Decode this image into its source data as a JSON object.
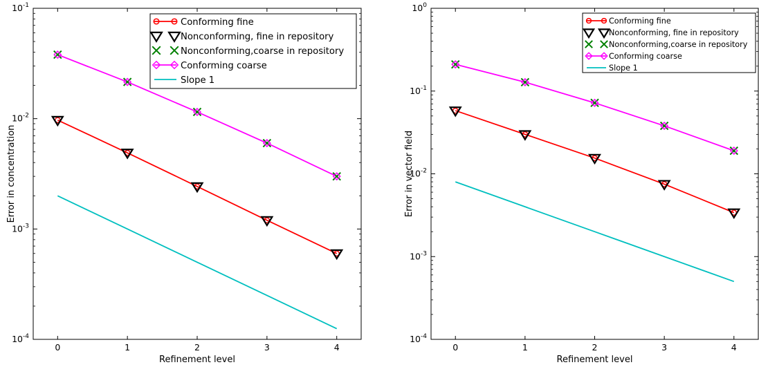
{
  "chart_data": [
    {
      "type": "line",
      "title": "",
      "xlabel": "Refinement level",
      "ylabel": "Error in concentration",
      "yscale": "log",
      "xlim": [
        -0.35,
        4.35
      ],
      "ylim": [
        0.0001,
        0.1
      ],
      "x": [
        0,
        1,
        2,
        3,
        4
      ],
      "xticks": [
        "0",
        "1",
        "2",
        "3",
        "4"
      ],
      "yticks": [
        {
          "value": 0.1,
          "base": "10",
          "exp": "-1"
        },
        {
          "value": 0.01,
          "base": "10",
          "exp": "-2"
        },
        {
          "value": 0.001,
          "base": "10",
          "exp": "-3"
        },
        {
          "value": 0.0001,
          "base": "10",
          "exp": "-4"
        }
      ],
      "grid": false,
      "legend_position": "top-right",
      "series": [
        {
          "name": "Conforming fine",
          "values": [
            0.0097,
            0.0049,
            0.00243,
            0.0012,
            0.0006
          ],
          "color": "#ff0000",
          "line": true,
          "marker": "circle"
        },
        {
          "name": "Nonconforming, fine in repository",
          "values": [
            0.0097,
            0.0049,
            0.00243,
            0.0012,
            0.0006
          ],
          "color": "#000000",
          "line": false,
          "marker": "triangle-down"
        },
        {
          "name": "Nonconforming,coarse in repository",
          "values": [
            0.038,
            0.0215,
            0.0115,
            0.006,
            0.003
          ],
          "color": "#008000",
          "line": false,
          "marker": "x"
        },
        {
          "name": "Conforming coarse",
          "values": [
            0.038,
            0.0215,
            0.0115,
            0.006,
            0.003
          ],
          "color": "#ff00ff",
          "line": true,
          "marker": "diamond"
        },
        {
          "name": "Slope 1",
          "values": [
            0.002,
            0.001,
            0.0005,
            0.00025,
            0.000125
          ],
          "color": "#00bfbf",
          "line": true,
          "marker": "none"
        }
      ]
    },
    {
      "type": "line",
      "title": "",
      "xlabel": "Refinement level",
      "ylabel": "Error in vector field",
      "yscale": "log",
      "xlim": [
        -0.35,
        4.35
      ],
      "ylim": [
        0.0001,
        1
      ],
      "x": [
        0,
        1,
        2,
        3,
        4
      ],
      "xticks": [
        "0",
        "1",
        "2",
        "3",
        "4"
      ],
      "yticks": [
        {
          "value": 1,
          "base": "10",
          "exp": "0"
        },
        {
          "value": 0.1,
          "base": "10",
          "exp": "-1"
        },
        {
          "value": 0.01,
          "base": "10",
          "exp": "-2"
        },
        {
          "value": 0.001,
          "base": "10",
          "exp": "-3"
        },
        {
          "value": 0.0001,
          "base": "10",
          "exp": "-4"
        }
      ],
      "grid": false,
      "legend_position": "top-right",
      "series": [
        {
          "name": "Conforming fine",
          "values": [
            0.058,
            0.03,
            0.0155,
            0.0075,
            0.0034
          ],
          "color": "#ff0000",
          "line": true,
          "marker": "circle"
        },
        {
          "name": "Nonconforming, fine in repository",
          "values": [
            0.058,
            0.03,
            0.0155,
            0.0075,
            0.0034
          ],
          "color": "#000000",
          "line": false,
          "marker": "triangle-down"
        },
        {
          "name": "Nonconforming,coarse in repository",
          "values": [
            0.21,
            0.128,
            0.072,
            0.038,
            0.019
          ],
          "color": "#008000",
          "line": false,
          "marker": "x"
        },
        {
          "name": "Conforming coarse",
          "values": [
            0.21,
            0.128,
            0.072,
            0.038,
            0.019
          ],
          "color": "#ff00ff",
          "line": true,
          "marker": "diamond"
        },
        {
          "name": "Slope 1",
          "values": [
            0.008,
            0.004,
            0.002,
            0.001,
            0.0005
          ],
          "color": "#00bfbf",
          "line": true,
          "marker": "none"
        }
      ]
    }
  ]
}
